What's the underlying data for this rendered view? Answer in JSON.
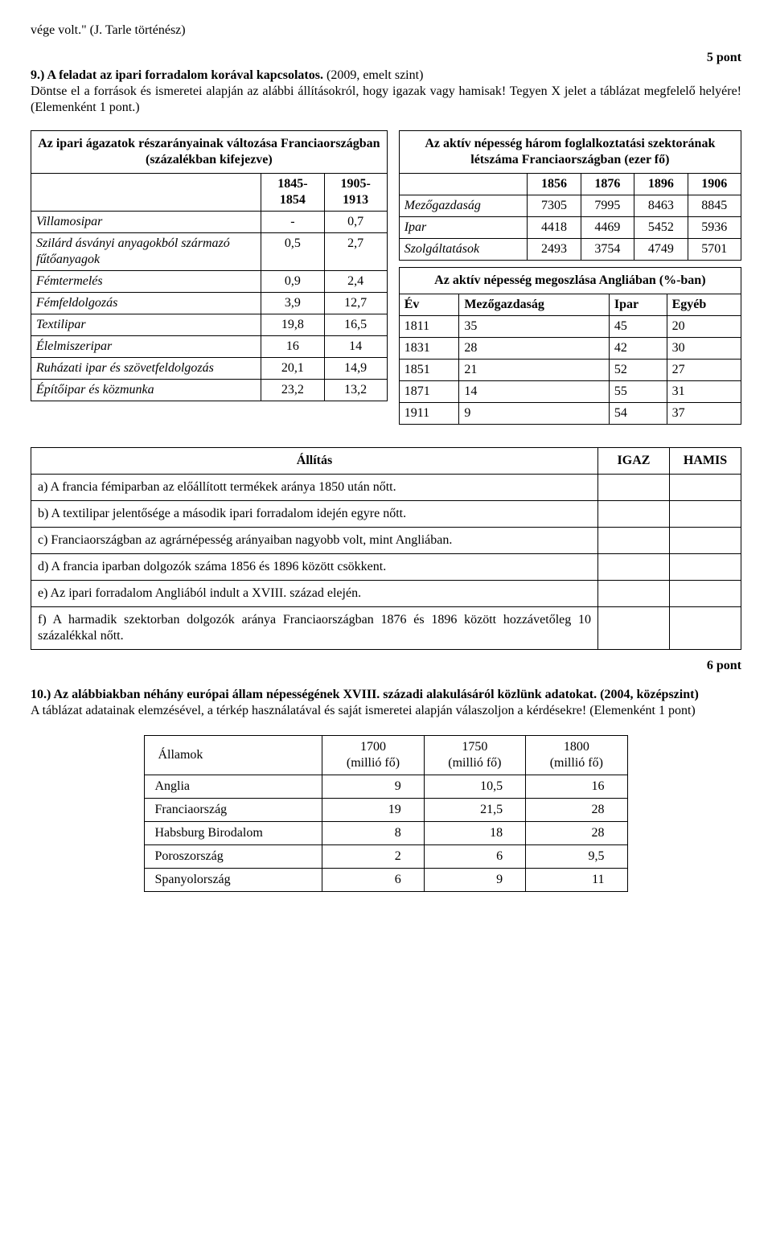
{
  "intro_line": "vége volt.\" (J. Tarle történész)",
  "points5": "5 pont",
  "q9_title": "9.) A feladat az ipari forradalom korával kapcsolatos. ",
  "q9_sub": "(2009, emelt szint)",
  "q9_body1": "Döntse el a források és ismeretei alapján az alábbi állításokról, hogy igazak vagy hamisak! Tegyen X jelet a táblázat megfelelő helyére! (Elemenként 1 pont.)",
  "t1_title": "Az ipari ágazatok részarányainak változása Franciaországban (százalékban kifejezve)",
  "t1_col1": "1845-1854",
  "t1_col2": "1905-1913",
  "t1_rows": [
    {
      "label": "Villamosipar",
      "a": "-",
      "b": "0,7"
    },
    {
      "label": "Szilárd ásványi anyagokból származó fűtőanyagok",
      "a": "0,5",
      "b": "2,7"
    },
    {
      "label": "Fémtermelés",
      "a": "0,9",
      "b": "2,4"
    },
    {
      "label": "Fémfeldolgozás",
      "a": "3,9",
      "b": "12,7"
    },
    {
      "label": "Textilipar",
      "a": "19,8",
      "b": "16,5"
    },
    {
      "label": "Élelmiszeripar",
      "a": "16",
      "b": "14"
    },
    {
      "label": "Ruházati ipar és szövetfeldolgozás",
      "a": "20,1",
      "b": "14,9"
    },
    {
      "label": "Építőipar és közmunka",
      "a": "23,2",
      "b": "13,2"
    }
  ],
  "t2_title": "Az aktív népesség három foglalkoztatási szektorának létszáma Franciaországban (ezer fő)",
  "t2_cols": [
    "1856",
    "1876",
    "1896",
    "1906"
  ],
  "t2_rows": [
    {
      "label": "Mezőgazdaság",
      "v": [
        "7305",
        "7995",
        "8463",
        "8845"
      ]
    },
    {
      "label": "Ipar",
      "v": [
        "4418",
        "4469",
        "5452",
        "5936"
      ]
    },
    {
      "label": "Szolgáltatások",
      "v": [
        "2493",
        "3754",
        "4749",
        "5701"
      ]
    }
  ],
  "t3_title": "Az aktív népesség megoszlása Angliában (%-ban)",
  "t3_header": [
    "Év",
    "Mezőgazdaság",
    "Ipar",
    "Egyéb"
  ],
  "t3_rows": [
    {
      "y": "1811",
      "a": "35",
      "b": "45",
      "c": "20"
    },
    {
      "y": "1831",
      "a": "28",
      "b": "42",
      "c": "30"
    },
    {
      "y": "1851",
      "a": "21",
      "b": "52",
      "c": "27"
    },
    {
      "y": "1871",
      "a": "14",
      "b": "55",
      "c": "31"
    },
    {
      "y": "1911",
      "a": "9",
      "b": "54",
      "c": "37"
    }
  ],
  "quiz_header": {
    "s": "Állítás",
    "i": "IGAZ",
    "h": "HAMIS"
  },
  "quiz_rows": [
    "a) A francia fémiparban az előállított termékek aránya 1850 után nőtt.",
    "b) A textilipar jelentősége a második ipari forradalom idején egyre nőtt.",
    "c) Franciaországban az agrárnépesség arányaiban nagyobb volt, mint Angliában.",
    "d) A francia iparban dolgozók száma 1856 és 1896 között csökkent.",
    "e) Az ipari forradalom Angliából indult a XVIII. század elején.",
    "f) A harmadik szektorban dolgozók aránya Franciaországban 1876 és 1896 között hozzávetőleg 10 százalékkal nőtt."
  ],
  "points6": "6 pont",
  "q10_title": "10.) Az alábbiakban néhány európai állam népességének XVIII. századi alakulásáról közlünk adatokat. (2004, középszint)",
  "q10_body": "A táblázat adatainak elemzésével, a térkép használatával és saját ismeretei alapján válaszoljon a kérdésekre! (Elemenként 1 pont)",
  "pop_header": [
    "Államok",
    "1700 (millió fő)",
    "1750 (millió fő)",
    "1800 (millió fő)"
  ],
  "pop_rows": [
    {
      "n": "Anglia",
      "a": "9",
      "b": "10,5",
      "c": "16"
    },
    {
      "n": "Franciaország",
      "a": "19",
      "b": "21,5",
      "c": "28"
    },
    {
      "n": "Habsburg Birodalom",
      "a": "8",
      "b": "18",
      "c": "28"
    },
    {
      "n": "Poroszország",
      "a": "2",
      "b": "6",
      "c": "9,5"
    },
    {
      "n": "Spanyolország",
      "a": "6",
      "b": "9",
      "c": "11"
    }
  ]
}
